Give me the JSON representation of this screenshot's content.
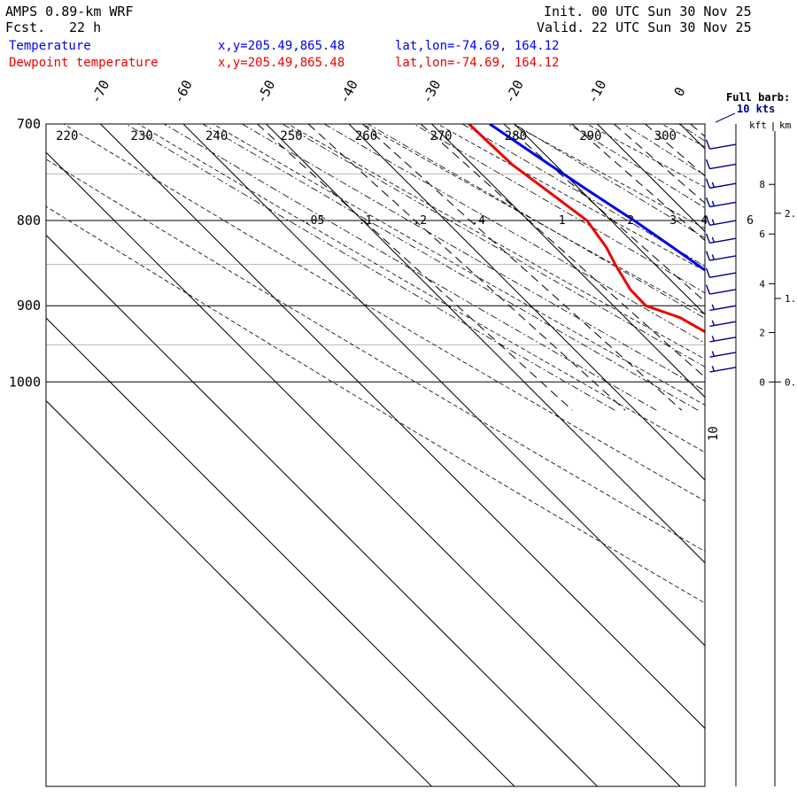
{
  "header": {
    "model_label": "AMPS 0.89-km WRF",
    "fcst_label": "Fcst.",
    "fcst_value": "22 h",
    "init_label": "Init.",
    "init_value": "00 UTC Sun 30 Nov 25",
    "valid_label": "Valid.",
    "valid_value": "22 UTC Sun 30 Nov 25"
  },
  "legend": [
    {
      "name": "Temperature",
      "xy": "x,y=205.49,865.48",
      "latlon": "lat,lon=-74.69, 164.12",
      "color": "#0000ee"
    },
    {
      "name": "Dewpoint temperature",
      "xy": "x,y=205.49,865.48",
      "latlon": "lat,lon=-74.69, 164.12",
      "color": "#ee0000"
    }
  ],
  "barb_note": {
    "line1": "Full barb:",
    "line2": "10 kts"
  },
  "chart_data": {
    "type": "line",
    "diagram": "skew-T log-p",
    "pressure_axis": {
      "label": "hPa",
      "ticks": [
        700,
        800,
        900,
        1000
      ],
      "range": [
        1040,
        700
      ],
      "minor_grid": [
        750,
        850,
        950
      ]
    },
    "isotherms_c": [
      -70,
      -60,
      -50,
      -40,
      -30,
      -20,
      -10,
      0
    ],
    "isotherm_labels": [
      "-70",
      "-60",
      "-50",
      "-40",
      "-30",
      "-20",
      "-10",
      "0"
    ],
    "dry_adiabats_k": [
      220,
      230,
      240,
      250,
      260,
      270,
      280,
      290,
      300
    ],
    "dry_adiabat_labels": [
      "220",
      "230",
      "240",
      "250",
      "260",
      "270",
      "280",
      "290",
      "300"
    ],
    "mixing_ratios_gkg": [
      0.05,
      0.1,
      0.2,
      0.4,
      1,
      2,
      3,
      4,
      6
    ],
    "mixing_ratio_labels": [
      ".05",
      ".1",
      ".2",
      ".4",
      "1",
      "2",
      "3",
      "4",
      "6"
    ],
    "series": [
      {
        "name": "Temperature",
        "color": "#0000ee",
        "pressure": [
          1000,
          990,
          960,
          940,
          900,
          860,
          830,
          800,
          770,
          740,
          700
        ],
        "values": [
          -13.1,
          -13.2,
          -13.0,
          -13.1,
          -13.3,
          -14.5,
          -15.8,
          -17.2,
          -19.0,
          -20.7,
          -23.0
        ]
      },
      {
        "name": "Dewpoint temperature",
        "color": "#ee0000",
        "pressure": [
          1000,
          996,
          980,
          968,
          955,
          940,
          915,
          900,
          880,
          850,
          830,
          800,
          760,
          740,
          700
        ],
        "values": [
          -16.5,
          -17.8,
          -19.2,
          -20.5,
          -23.3,
          -21.6,
          -23.4,
          -26.1,
          -26.0,
          -24.8,
          -23.8,
          -22.9,
          -24.4,
          -25.2,
          -25.5
        ]
      }
    ],
    "height_axis": {
      "kft_label": "kft",
      "km_label": "km",
      "kft_ticks": [
        {
          "label": "0",
          "pressure": 1000
        },
        {
          "label": "2",
          "pressure": 934
        },
        {
          "label": "4",
          "pressure": 873
        },
        {
          "label": "6",
          "pressure": 815
        },
        {
          "label": "8",
          "pressure": 761
        }
      ],
      "km_ticks": [
        {
          "label": "0.",
          "pressure": 1000
        },
        {
          "label": "1.",
          "pressure": 891
        },
        {
          "label": "2.",
          "pressure": 792
        }
      ]
    },
    "wind_barbs": {
      "direction_deg": 260,
      "levels": [
        {
          "pressure": 980,
          "speed_kt": 5
        },
        {
          "pressure": 960,
          "speed_kt": 5
        },
        {
          "pressure": 940,
          "speed_kt": 5
        },
        {
          "pressure": 920,
          "speed_kt": 5
        },
        {
          "pressure": 900,
          "speed_kt": 5
        },
        {
          "pressure": 880,
          "speed_kt": 10
        },
        {
          "pressure": 860,
          "speed_kt": 10
        },
        {
          "pressure": 840,
          "speed_kt": 15
        },
        {
          "pressure": 820,
          "speed_kt": 15
        },
        {
          "pressure": 800,
          "speed_kt": 15
        },
        {
          "pressure": 780,
          "speed_kt": 15
        },
        {
          "pressure": 760,
          "speed_kt": 15
        },
        {
          "pressure": 740,
          "speed_kt": 10
        },
        {
          "pressure": 720,
          "speed_kt": 10
        }
      ],
      "speed_label": "10"
    }
  }
}
